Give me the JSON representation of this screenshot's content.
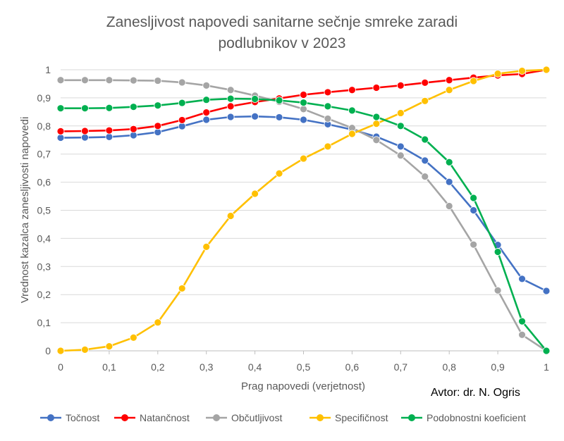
{
  "chart_data": {
    "type": "line",
    "title_line1": "Zanesljivost napovedi sanitarne sečnje smreke zaradi",
    "title_line2": "podlubnikov v 2023",
    "xlabel": "Prag napovedi (verjetnost)",
    "ylabel": "Vrednost kazalca zanesljivosti napovedi",
    "author_note": "Avtor: dr. N. Ogris",
    "xlim": [
      0,
      1
    ],
    "ylim": [
      0,
      1
    ],
    "x_ticks": [
      "0",
      "0,1",
      "0,2",
      "0,3",
      "0,4",
      "0,5",
      "0,6",
      "0,7",
      "0,8",
      "0,9",
      "1"
    ],
    "y_ticks": [
      "0",
      "0,1",
      "0,2",
      "0,3",
      "0,4",
      "0,5",
      "0,6",
      "0,7",
      "0,8",
      "0,9",
      "1"
    ],
    "grid": "horizontal",
    "legend_position": "bottom",
    "x": [
      0,
      0.05,
      0.1,
      0.15,
      0.2,
      0.25,
      0.3,
      0.35,
      0.4,
      0.45,
      0.5,
      0.55,
      0.6,
      0.65,
      0.7,
      0.75,
      0.8,
      0.85,
      0.9,
      0.95,
      1.0
    ],
    "series": [
      {
        "name": "Točnost",
        "color": "#4472C4",
        "values": [
          0.758,
          0.759,
          0.761,
          0.767,
          0.778,
          0.799,
          0.822,
          0.832,
          0.834,
          0.831,
          0.822,
          0.806,
          0.787,
          0.762,
          0.727,
          0.677,
          0.601,
          0.5,
          0.377,
          0.256,
          0.213
        ]
      },
      {
        "name": "Natančnost",
        "color": "#FF0000",
        "values": [
          0.781,
          0.782,
          0.784,
          0.789,
          0.8,
          0.821,
          0.848,
          0.87,
          0.885,
          0.898,
          0.911,
          0.92,
          0.928,
          0.936,
          0.944,
          0.954,
          0.963,
          0.972,
          0.98,
          0.985,
          1.0
        ]
      },
      {
        "name": "Občutljivost",
        "color": "#A5A5A5",
        "values": [
          0.963,
          0.963,
          0.963,
          0.962,
          0.961,
          0.955,
          0.944,
          0.928,
          0.908,
          0.886,
          0.86,
          0.826,
          0.793,
          0.75,
          0.695,
          0.62,
          0.515,
          0.378,
          0.215,
          0.057,
          0.0
        ]
      },
      {
        "name": "Specifičnost",
        "color": "#FFC000",
        "values": [
          0.0,
          0.004,
          0.016,
          0.047,
          0.101,
          0.222,
          0.37,
          0.48,
          0.559,
          0.631,
          0.684,
          0.727,
          0.772,
          0.808,
          0.846,
          0.889,
          0.928,
          0.96,
          0.986,
          0.996,
          1.0
        ]
      },
      {
        "name": "Podobnostni koeficient",
        "color": "#00B050",
        "values": [
          0.863,
          0.863,
          0.864,
          0.868,
          0.873,
          0.882,
          0.893,
          0.897,
          0.896,
          0.891,
          0.883,
          0.87,
          0.855,
          0.832,
          0.8,
          0.752,
          0.671,
          0.544,
          0.352,
          0.105,
          0.0
        ]
      }
    ]
  }
}
